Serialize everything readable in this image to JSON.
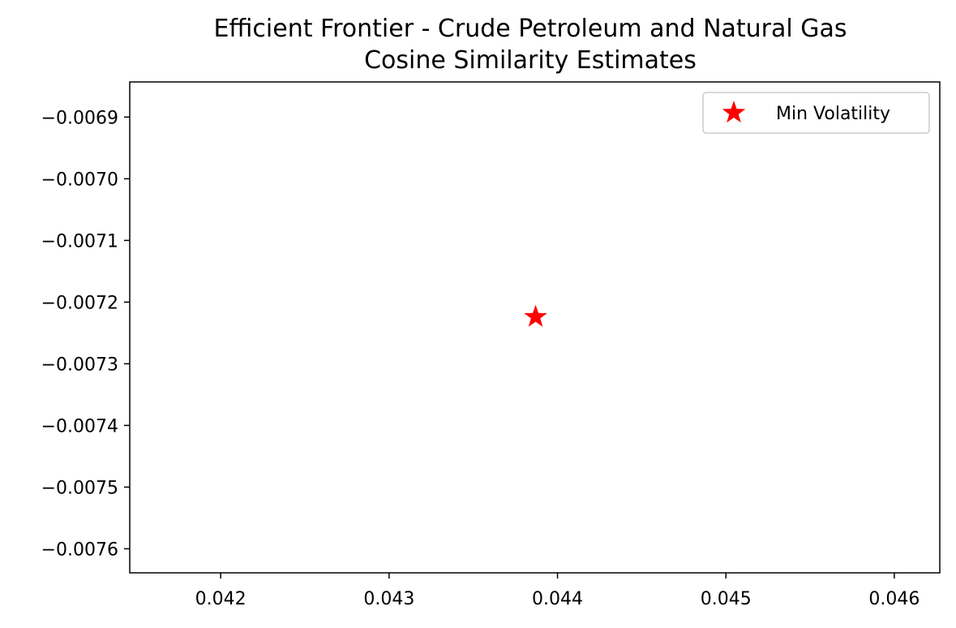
{
  "chart_data": {
    "type": "scatter",
    "title": "Efficient Frontier - Crude Petroleum and Natural Gas",
    "subtitle": "Cosine Similarity Estimates",
    "xlabel": "",
    "ylabel": "",
    "xlim": [
      0.04146,
      0.04627
    ],
    "ylim": [
      -0.007639,
      -0.006843
    ],
    "x_ticks": [
      {
        "value": 0.042,
        "label": "0.042"
      },
      {
        "value": 0.043,
        "label": "0.043"
      },
      {
        "value": 0.044,
        "label": "0.044"
      },
      {
        "value": 0.045,
        "label": "0.045"
      },
      {
        "value": 0.046,
        "label": "0.046"
      }
    ],
    "y_ticks": [
      {
        "value": -0.0069,
        "label": "−0.0069"
      },
      {
        "value": -0.007,
        "label": "−0.0070"
      },
      {
        "value": -0.0071,
        "label": "−0.0071"
      },
      {
        "value": -0.0072,
        "label": "−0.0072"
      },
      {
        "value": -0.0073,
        "label": "−0.0073"
      },
      {
        "value": -0.0074,
        "label": "−0.0074"
      },
      {
        "value": -0.0075,
        "label": "−0.0075"
      },
      {
        "value": -0.0076,
        "label": "−0.0076"
      }
    ],
    "grid": false,
    "legend_position": "top-right",
    "series": [
      {
        "name": "Min Volatility",
        "marker": "star",
        "color": "#ff0000",
        "points": [
          {
            "x": 0.04387,
            "y": -0.007224
          }
        ]
      }
    ]
  }
}
